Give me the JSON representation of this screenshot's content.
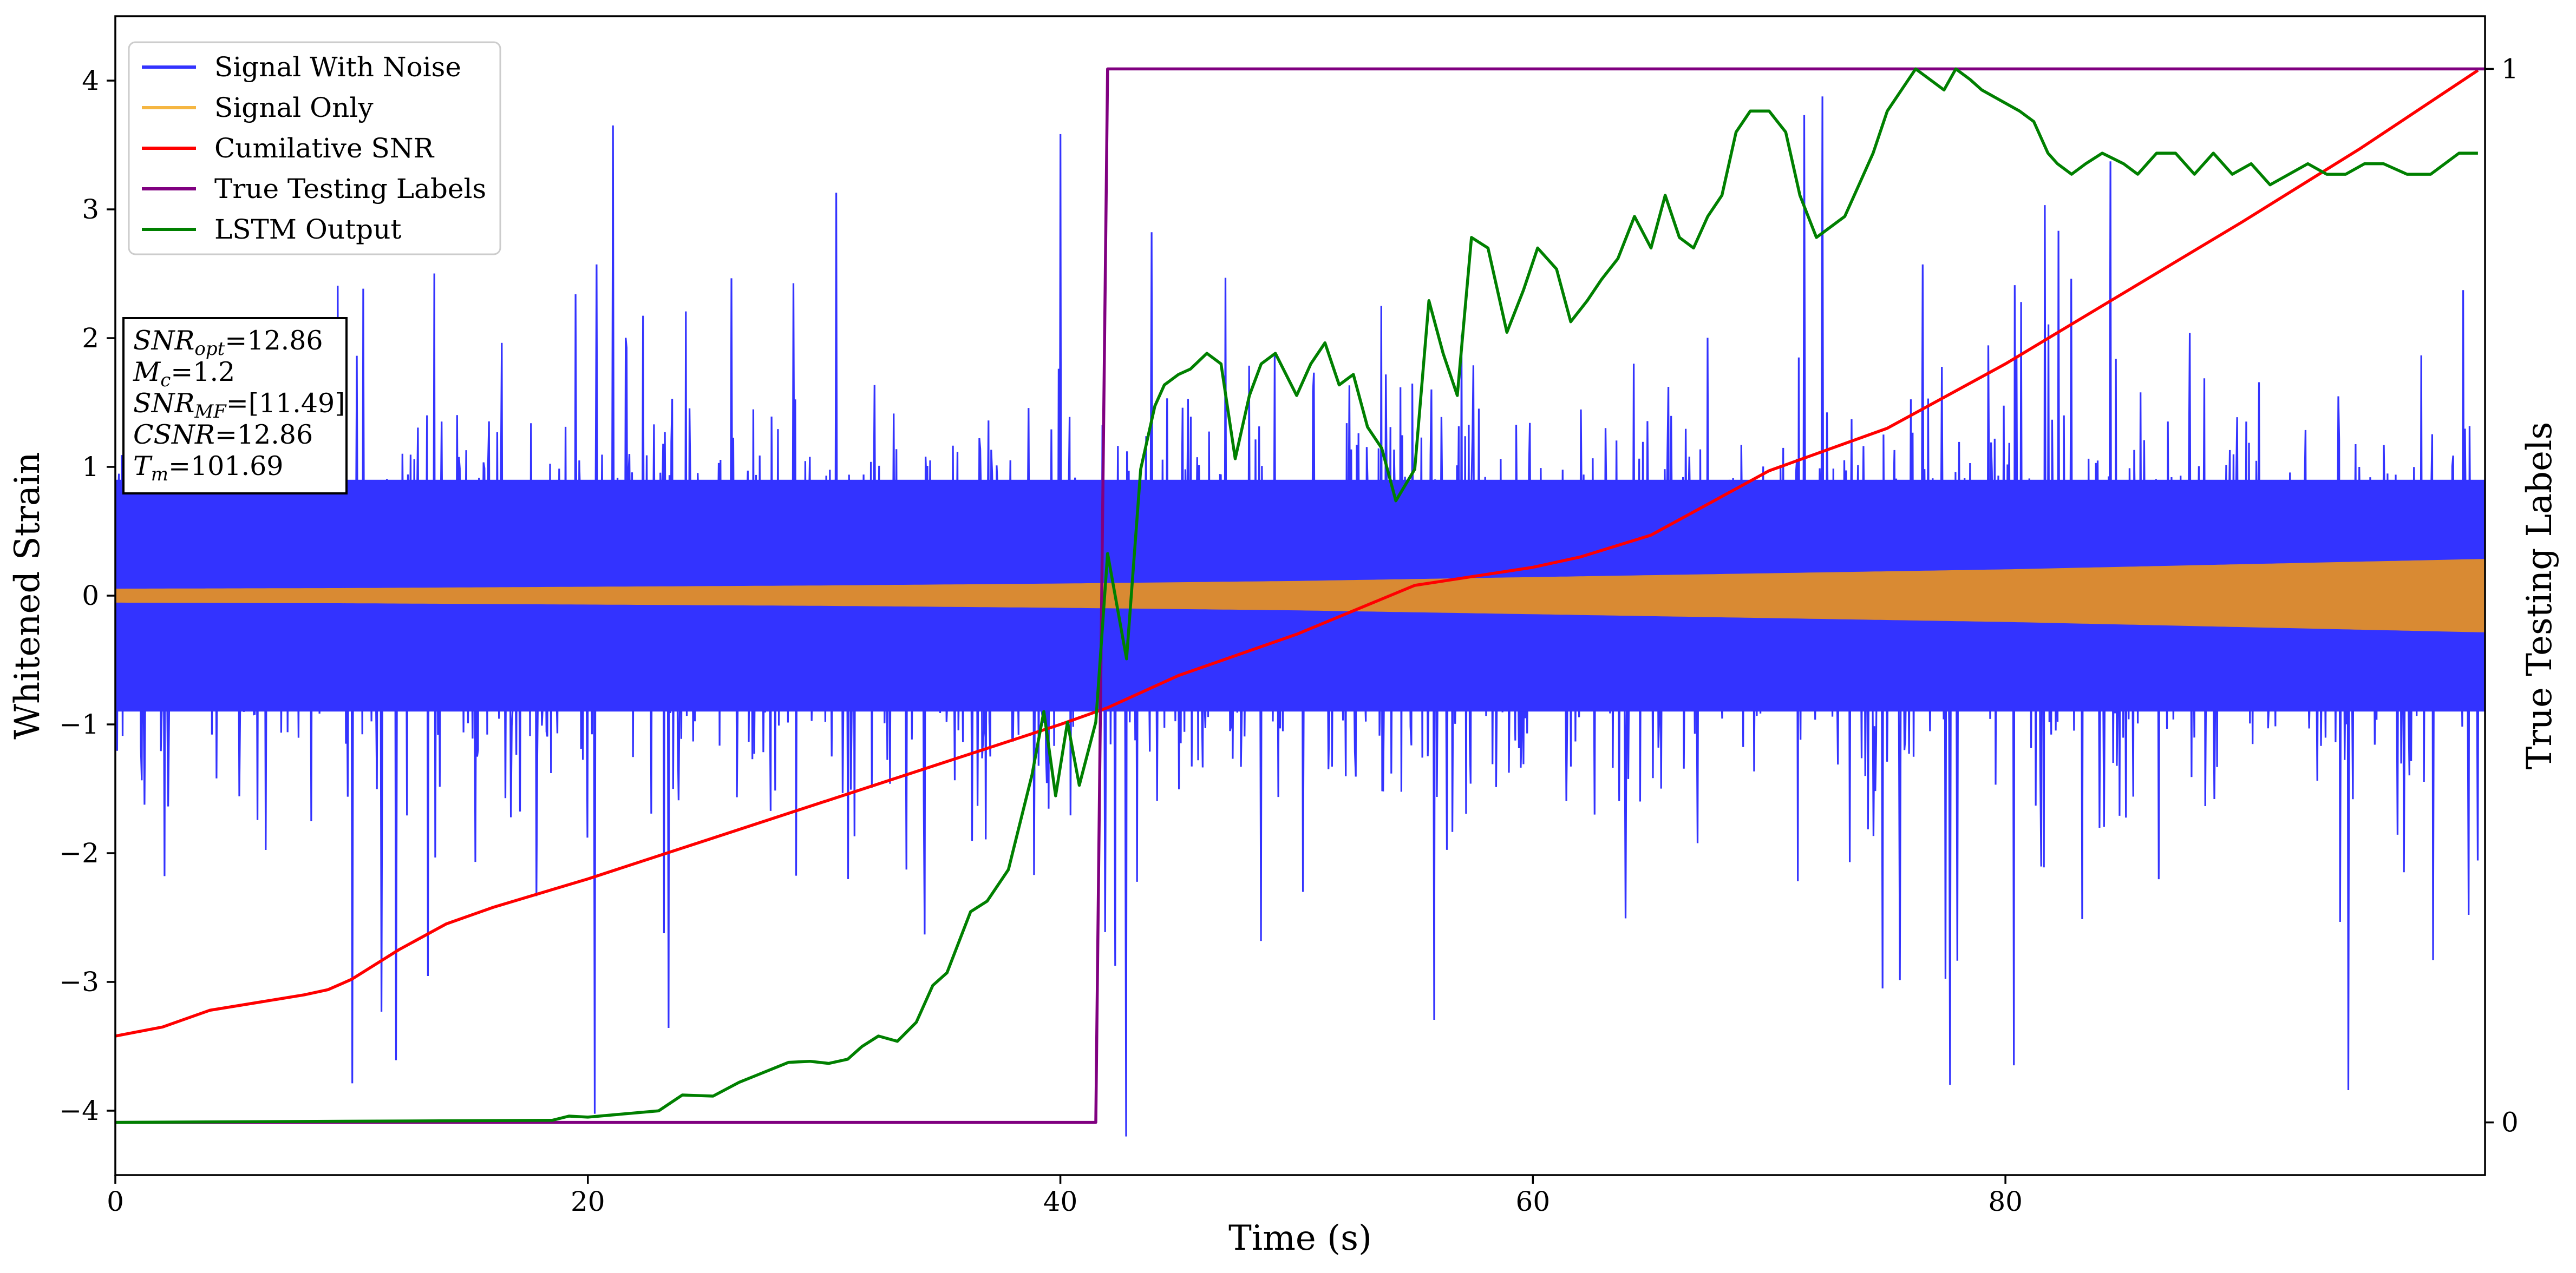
{
  "chart_data": {
    "type": "line",
    "x_axis": {
      "label": "Time (s)",
      "range": [
        0,
        100.3
      ],
      "ticks": [
        0,
        20,
        40,
        60,
        80
      ]
    },
    "y_left": {
      "label": "Whitened Strain",
      "range": [
        -4.5,
        4.5
      ],
      "ticks": [
        -4,
        -3,
        -2,
        -1,
        0,
        1,
        2,
        3,
        4
      ]
    },
    "y_right": {
      "label": "True Testing Labels",
      "range": [
        -0.05,
        1.05
      ],
      "ticks": [
        0,
        1
      ]
    },
    "grid": false,
    "legend": {
      "placement": "top-left",
      "entries": [
        {
          "label": "Signal With Noise",
          "color": "#3333ff"
        },
        {
          "label": "Signal Only",
          "color": "#f5b642"
        },
        {
          "label": "Cumilative SNR",
          "color": "#ff0000"
        },
        {
          "label": "True Testing Labels",
          "color": "#800080"
        },
        {
          "label": "LSTM Output",
          "color": "#008000"
        }
      ]
    },
    "annotation": {
      "lines": [
        {
          "name": "SNR",
          "sub": "opt",
          "value": "=12.86"
        },
        {
          "name": "M",
          "sub": "c",
          "value": "=1.2"
        },
        {
          "name": "SNR",
          "sub": "MF",
          "value": "=[11.49]"
        },
        {
          "name": "CSNR",
          "sub": "",
          "value": "=12.86"
        },
        {
          "name": "T",
          "sub": "m",
          "value": "=101.69"
        }
      ]
    },
    "series": [
      {
        "name": "Signal With Noise",
        "axis": "left",
        "color": "#3333ff",
        "envelope": {
          "typical_abs": 0.9,
          "peak_abs": 4.2
        }
      },
      {
        "name": "Signal Only",
        "axis": "left",
        "color": "#d98a33",
        "amplitude_envelope": {
          "x": [
            0,
            10,
            20,
            30,
            40,
            50,
            60,
            70,
            80,
            90,
            100
          ],
          "y": [
            0.05,
            0.055,
            0.065,
            0.075,
            0.09,
            0.11,
            0.14,
            0.17,
            0.2,
            0.24,
            0.28
          ]
        }
      },
      {
        "name": "Cumilative SNR",
        "axis": "left",
        "color": "#ff0000",
        "x": [
          0,
          2,
          4,
          6,
          8,
          9,
          10,
          12,
          14,
          16,
          20,
          25,
          30,
          35,
          40,
          42,
          45,
          50,
          55,
          60,
          62,
          65,
          70,
          75,
          80,
          85,
          90,
          95,
          100
        ],
        "y": [
          -3.42,
          -3.35,
          -3.22,
          -3.16,
          -3.1,
          -3.06,
          -2.98,
          -2.75,
          -2.55,
          -2.42,
          -2.2,
          -1.9,
          -1.6,
          -1.3,
          -1.0,
          -0.87,
          -0.62,
          -0.3,
          0.08,
          0.22,
          0.3,
          0.47,
          0.97,
          1.3,
          1.8,
          2.35,
          2.9,
          3.47,
          4.08
        ]
      },
      {
        "name": "True Testing Labels",
        "axis": "right",
        "color": "#800080",
        "x": [
          0,
          41.5,
          42.0,
          100.3
        ],
        "y": [
          0,
          0,
          1,
          1
        ]
      },
      {
        "name": "LSTM Output",
        "axis": "right",
        "color": "#008000",
        "x": [
          0,
          18.5,
          19.2,
          20,
          23,
          24,
          25.3,
          26.4,
          27.5,
          28.5,
          29.4,
          30.2,
          31.0,
          31.6,
          32.3,
          33.1,
          33.9,
          34.6,
          35.2,
          36.2,
          36.9,
          37.8,
          38.8,
          39.3,
          39.8,
          40.3,
          40.8,
          41.5,
          42.0,
          42.8,
          43.4,
          44.0,
          44.4,
          45.0,
          45.5,
          46.2,
          46.8,
          47.4,
          48.0,
          48.5,
          49.1,
          50.0,
          50.6,
          51.2,
          51.8,
          52.4,
          53.0,
          53.6,
          54.2,
          55.0,
          55.6,
          56.2,
          56.8,
          57.4,
          58.1,
          58.9,
          59.6,
          60.2,
          61.0,
          61.6,
          62.3,
          62.9,
          63.6,
          64.3,
          65.0,
          65.6,
          66.2,
          66.8,
          67.4,
          68.0,
          68.6,
          69.2,
          70.0,
          70.7,
          71.3,
          72.0,
          72.6,
          73.2,
          73.8,
          74.4,
          75.0,
          75.6,
          76.2,
          76.8,
          77.4,
          77.9,
          78.5,
          79.0,
          79.8,
          80.6,
          81.2,
          81.8,
          82.2,
          82.8,
          83.4,
          84.1,
          85.0,
          85.6,
          86.4,
          87.2,
          88.0,
          88.8,
          89.6,
          90.4,
          91.2,
          92.0,
          92.8,
          93.6,
          94.4,
          95.2,
          96.0,
          97.0,
          98.0,
          98.6,
          99.2,
          100.0
        ],
        "y": [
          0.0,
          0.002,
          0.006,
          0.005,
          0.011,
          0.026,
          0.025,
          0.038,
          0.048,
          0.057,
          0.058,
          0.056,
          0.06,
          0.072,
          0.082,
          0.077,
          0.095,
          0.13,
          0.142,
          0.2,
          0.21,
          0.24,
          0.33,
          0.39,
          0.31,
          0.38,
          0.32,
          0.38,
          0.54,
          0.44,
          0.62,
          0.68,
          0.7,
          0.71,
          0.715,
          0.73,
          0.72,
          0.63,
          0.69,
          0.72,
          0.73,
          0.69,
          0.72,
          0.74,
          0.7,
          0.71,
          0.66,
          0.64,
          0.59,
          0.62,
          0.78,
          0.73,
          0.69,
          0.84,
          0.83,
          0.75,
          0.79,
          0.83,
          0.81,
          0.76,
          0.78,
          0.8,
          0.82,
          0.86,
          0.83,
          0.88,
          0.84,
          0.83,
          0.86,
          0.88,
          0.94,
          0.96,
          0.96,
          0.94,
          0.88,
          0.84,
          0.85,
          0.86,
          0.89,
          0.92,
          0.96,
          0.98,
          1.0,
          0.99,
          0.98,
          1.0,
          0.99,
          0.98,
          0.97,
          0.96,
          0.95,
          0.92,
          0.91,
          0.9,
          0.91,
          0.92,
          0.91,
          0.9,
          0.92,
          0.92,
          0.9,
          0.92,
          0.9,
          0.91,
          0.89,
          0.9,
          0.91,
          0.9,
          0.9,
          0.91,
          0.91,
          0.9,
          0.9,
          0.91,
          0.92,
          0.92
        ]
      }
    ]
  }
}
